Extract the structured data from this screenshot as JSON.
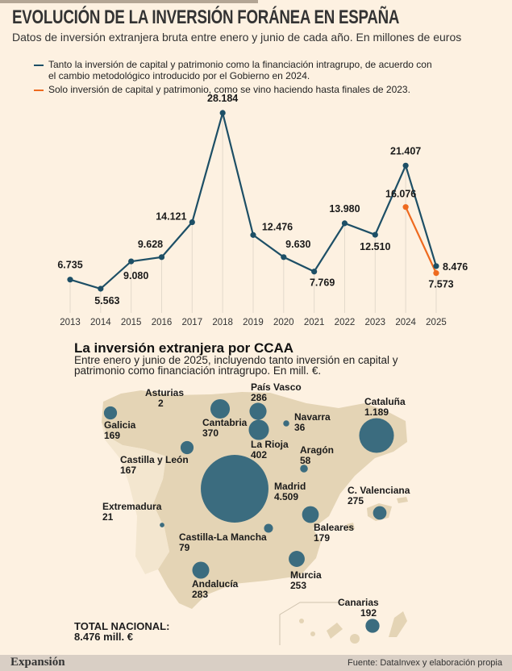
{
  "header": {
    "title": "EVOLUCIÓN DE LA INVERSIÓN FORÁNEA EN ESPAÑA",
    "subtitle": "Datos de inversión extranjera bruta entre enero y junio de cada año. En millones de euros"
  },
  "chart_data": {
    "type": "line",
    "x": [
      2013,
      2014,
      2015,
      2016,
      2017,
      2018,
      2019,
      2020,
      2021,
      2022,
      2023,
      2024,
      2025
    ],
    "x_tick_labels": [
      "2013",
      "2014",
      "2015",
      "2016",
      "2017",
      "2018",
      "2019",
      "2020",
      "2021",
      "2022",
      "2023",
      "2024",
      "2025"
    ],
    "series": [
      {
        "name": "Tanto la inversión de capital y patrimonio como la financiación intragrupo, de acuerdo con el cambio metodológico introducido por el Gobierno en 2024.",
        "color": "#1d4f66",
        "x": [
          2013,
          2014,
          2015,
          2016,
          2017,
          2018,
          2019,
          2020,
          2021,
          2022,
          2023,
          2024,
          2025
        ],
        "values": [
          6735,
          5563,
          9080,
          9628,
          14121,
          28184,
          12476,
          9630,
          7769,
          13980,
          12510,
          21407,
          8476
        ],
        "labels": [
          "6.735",
          "5.563",
          "9.080",
          "9.628",
          "14.121",
          "28.184",
          "12.476",
          "9.630",
          "7.769",
          "13.980",
          "12.510",
          "21.407",
          "8.476"
        ]
      },
      {
        "name": "Solo inversión de capital y patrimonio, como se vino haciendo hasta finales de 2023.",
        "color": "#ee6a1f",
        "x": [
          2024,
          2025
        ],
        "values": [
          16076,
          7573
        ],
        "labels": [
          "16.076",
          "7.573"
        ]
      }
    ],
    "grid": false,
    "legend": "top"
  },
  "map": {
    "title": "La inversión extranjera por CCAA",
    "subtitle": "Entre enero y junio de 2025, incluyendo tanto inversión en capital y patrimonio como financiación intragrupo. En mill. €.",
    "bubble_color": "#3b6c7f",
    "land_color": "#e4d4b5",
    "regions": [
      {
        "name": "Galicia",
        "value": "169",
        "num": 169
      },
      {
        "name": "Asturias",
        "value": "2",
        "num": 2
      },
      {
        "name": "Cantabria",
        "value": "370",
        "num": 370
      },
      {
        "name": "País Vasco",
        "value": "286",
        "num": 286
      },
      {
        "name": "Navarra",
        "value": "36",
        "num": 36
      },
      {
        "name": "Cataluña",
        "value": "1.189",
        "num": 1189
      },
      {
        "name": "La Rioja",
        "value": "402",
        "num": 402
      },
      {
        "name": "Castilla y León",
        "value": "167",
        "num": 167
      },
      {
        "name": "Aragón",
        "value": "58",
        "num": 58
      },
      {
        "name": "Madrid",
        "value": "4.509",
        "num": 4509
      },
      {
        "name": "Extremadura",
        "value": "21",
        "num": 21
      },
      {
        "name": "Baleares",
        "value": "179",
        "num": 179
      },
      {
        "name": "C. Valenciana",
        "value": "275",
        "num": 275
      },
      {
        "name": "Castilla-La Mancha",
        "value": "79",
        "num": 79
      },
      {
        "name": "Murcia",
        "value": "253",
        "num": 253
      },
      {
        "name": "Andalucía",
        "value": "283",
        "num": 283
      },
      {
        "name": "Canarias",
        "value": "192",
        "num": 192
      }
    ],
    "total_label": "TOTAL NACIONAL:",
    "total_value": "8.476 mill. €"
  },
  "footer": {
    "brand": "Expansión",
    "source": "Fuente: DataInvex y elaboración propia"
  }
}
